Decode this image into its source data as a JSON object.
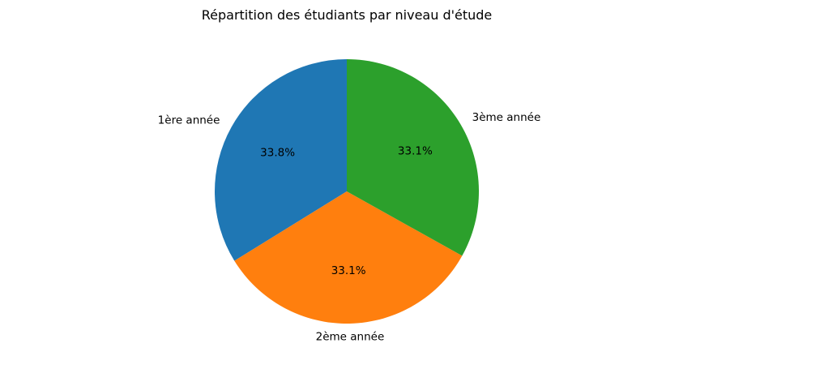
{
  "chart_data": {
    "type": "pie",
    "title": "Répartition des étudiants par niveau d'étude",
    "start_angle_deg": 90,
    "direction": "counterclockwise",
    "slices": [
      {
        "label": "1ère année",
        "value": 33.8,
        "pct_label": "33.8%",
        "color": "#1f77b4"
      },
      {
        "label": "2ème année",
        "value": 33.1,
        "pct_label": "33.1%",
        "color": "#ff7f0e"
      },
      {
        "label": "3ème année",
        "value": 33.1,
        "pct_label": "33.1%",
        "color": "#2ca02c"
      }
    ]
  }
}
